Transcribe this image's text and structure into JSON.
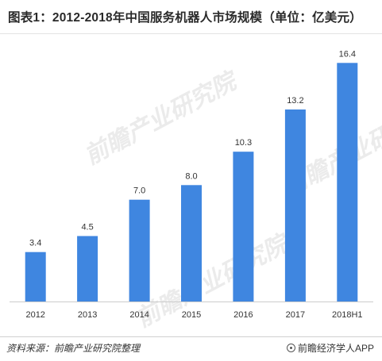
{
  "title": "图表1：2012-2018年中国服务机器人市场规模（单位：亿美元）",
  "source": "资料来源：前瞻产业研究院整理",
  "brand": "前瞻经济学人APP",
  "watermark": "前瞻产业研究院",
  "colors": {
    "bar": "#3f86e0",
    "axis": "#cccccc",
    "text": "#333333"
  },
  "chart_data": {
    "type": "bar",
    "title": "图表1：2012-2018年中国服务机器人市场规模（单位：亿美元）",
    "xlabel": "",
    "ylabel": "",
    "categories": [
      "2012",
      "2013",
      "2014",
      "2015",
      "2016",
      "2017",
      "2018H1"
    ],
    "values": [
      3.4,
      4.5,
      7.0,
      8.0,
      10.3,
      13.2,
      16.4
    ],
    "value_labels": [
      "3.4",
      "4.5",
      "7.0",
      "8.0",
      "10.3",
      "13.2",
      "16.4"
    ],
    "ylim": [
      0,
      18
    ],
    "grid": false,
    "legend": "none"
  }
}
